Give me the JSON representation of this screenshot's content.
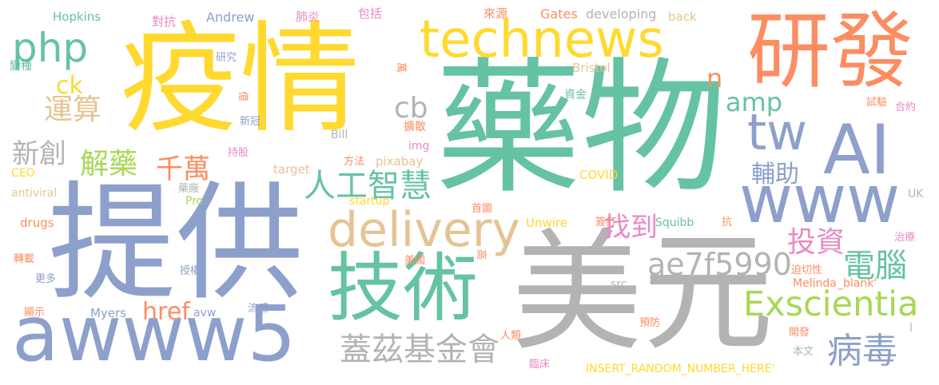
{
  "palette": {
    "green": "#66c2a5",
    "orange": "#fc8d62",
    "blue": "#8da0cb",
    "pink": "#e78ac3",
    "lime": "#a6d854",
    "yellow": "#ffd92f",
    "tan": "#e5c494",
    "gray": "#b3b3b3"
  },
  "words": [
    {
      "id": "w-yiqing",
      "text": "疫情",
      "color": "#ffd92f"
    },
    {
      "id": "w-yaowu",
      "text": "藥物",
      "color": "#66c2a5"
    },
    {
      "id": "w-tigong",
      "text": "提供",
      "color": "#8da0cb"
    },
    {
      "id": "w-meiyuan",
      "text": "美元",
      "color": "#b3b3b3"
    },
    {
      "id": "w-aiwww5",
      "text": "awww5",
      "color": "#8da0cb"
    },
    {
      "id": "w-technews",
      "text": "technews",
      "color": "#ffd92f"
    },
    {
      "id": "w-yanfa",
      "text": "研發",
      "color": "#fc8d62"
    },
    {
      "id": "w-jishu",
      "text": "技術",
      "color": "#66c2a5"
    },
    {
      "id": "w-ai",
      "text": "AI",
      "color": "#8da0cb"
    },
    {
      "id": "w-www",
      "text": "www",
      "color": "#8da0cb"
    },
    {
      "id": "w-tw",
      "text": "tw",
      "color": "#8da0cb"
    },
    {
      "id": "w-delivery",
      "text": "delivery",
      "color": "#e5c494"
    },
    {
      "id": "w-php",
      "text": "php",
      "color": "#66c2a5"
    },
    {
      "id": "w-exscientia",
      "text": "Exscientia",
      "color": "#a6d854"
    },
    {
      "id": "w-ae7f",
      "text": "ae7f5990",
      "color": "#b3b3b3"
    },
    {
      "id": "w-rengong",
      "text": "人工智慧",
      "color": "#66c2a5"
    },
    {
      "id": "w-gaizi",
      "text": "蓋茲基金會",
      "color": "#b3b3b3"
    },
    {
      "id": "w-bingdu",
      "text": "病毒",
      "color": "#8da0cb"
    },
    {
      "id": "w-touzi",
      "text": "投資",
      "color": "#e78ac3"
    },
    {
      "id": "w-diannao",
      "text": "電腦",
      "color": "#66c2a5"
    },
    {
      "id": "w-jieyao",
      "text": "解藥",
      "color": "#a6d854"
    },
    {
      "id": "w-qianwan",
      "text": "千萬",
      "color": "#fc8d62"
    },
    {
      "id": "w-zhaodao",
      "text": "找到",
      "color": "#e78ac3"
    },
    {
      "id": "w-fuzhu",
      "text": "輔助",
      "color": "#8da0cb"
    },
    {
      "id": "w-xinchuang",
      "text": "新創",
      "color": "#b3b3b3"
    },
    {
      "id": "w-yunsuan",
      "text": "運算",
      "color": "#e5c494"
    },
    {
      "id": "w-amp",
      "text": "amp",
      "color": "#66c2a5"
    },
    {
      "id": "w-cb",
      "text": "cb",
      "color": "#b3b3b3"
    },
    {
      "id": "w-href",
      "text": "href",
      "color": "#fc8d62"
    },
    {
      "id": "w-ck",
      "text": "ck",
      "color": "#ffd92f"
    },
    {
      "id": "w-n",
      "text": "n",
      "color": "#fc8d62"
    },
    {
      "id": "w-hopkins",
      "text": "Hopkins",
      "color": "#66c2a5"
    },
    {
      "id": "w-duikang",
      "text": "對抗",
      "color": "#e78ac3"
    },
    {
      "id": "w-andrew",
      "text": "Andrew",
      "color": "#8da0cb"
    },
    {
      "id": "w-feiyan",
      "text": "肺炎",
      "color": "#e78ac3"
    },
    {
      "id": "w-baokuo",
      "text": "包括",
      "color": "#e78ac3"
    },
    {
      "id": "w-laiyuan",
      "text": "來源",
      "color": "#fc8d62"
    },
    {
      "id": "w-gates",
      "text": "Gates",
      "color": "#fc8d62"
    },
    {
      "id": "w-developing",
      "text": "developing",
      "color": "#b3b3b3"
    },
    {
      "id": "w-back",
      "text": "back",
      "color": "#e5c494"
    },
    {
      "id": "w-bianzhong",
      "text": "變種",
      "color": "#66c2a5"
    },
    {
      "id": "w-yanjiu",
      "text": "研究",
      "color": "#8da0cb"
    },
    {
      "id": "w-wan",
      "text": "萬",
      "color": "#fc8d62"
    },
    {
      "id": "w-bristol",
      "text": "Bristol",
      "color": "#e5c494"
    },
    {
      "id": "w-yi",
      "text": "億",
      "color": "#fc8d62"
    },
    {
      "id": "w-zijin",
      "text": "資金",
      "color": "#66c2a5"
    },
    {
      "id": "w-shiyan",
      "text": "試驗",
      "color": "#fc8d62"
    },
    {
      "id": "w-heyue",
      "text": "合約",
      "color": "#e78ac3"
    },
    {
      "id": "w-xinguan",
      "text": "新冠",
      "color": "#8da0cb"
    },
    {
      "id": "w-bill",
      "text": "Bill",
      "color": "#b3b3b3"
    },
    {
      "id": "w-kuosan",
      "text": "擴散",
      "color": "#fc8d62"
    },
    {
      "id": "w-img",
      "text": "img",
      "color": "#e78ac3"
    },
    {
      "id": "w-chigu",
      "text": "持股",
      "color": "#e78ac3"
    },
    {
      "id": "w-ceo",
      "text": "CEO",
      "color": "#ffd92f"
    },
    {
      "id": "w-target",
      "text": "target",
      "color": "#e5c494"
    },
    {
      "id": "w-fangfa",
      "text": "方法",
      "color": "#fc8d62"
    },
    {
      "id": "w-pixabay",
      "text": "pixabay",
      "color": "#e5c494"
    },
    {
      "id": "w-covid",
      "text": "COVID",
      "color": "#ffd92f"
    },
    {
      "id": "w-antiviral",
      "text": "antiviral",
      "color": "#e5c494"
    },
    {
      "id": "w-yaochang",
      "text": "藥廠",
      "color": "#b3b3b3"
    },
    {
      "id": "w-startup",
      "text": "startup",
      "color": "#ffd92f"
    },
    {
      "id": "w-uk",
      "text": "UK",
      "color": "#b3b3b3"
    },
    {
      "id": "w-pro",
      "text": "Pro",
      "color": "#a6d854"
    },
    {
      "id": "w-drugs",
      "text": "drugs",
      "color": "#fc8d62"
    },
    {
      "id": "w-shoutu",
      "text": "首圖",
      "color": "#fc8d62"
    },
    {
      "id": "w-unwire",
      "text": "Unwire",
      "color": "#ffd92f"
    },
    {
      "id": "w-qianding",
      "text": "簽訂",
      "color": "#fc8d62"
    },
    {
      "id": "w-squibb",
      "text": "Squibb",
      "color": "#66c2a5"
    },
    {
      "id": "w-kang",
      "text": "抗",
      "color": "#fc8d62"
    },
    {
      "id": "w-zhiliao",
      "text": "治療",
      "color": "#e78ac3"
    },
    {
      "id": "w-zhuanzai",
      "text": "轉載",
      "color": "#fc8d62"
    },
    {
      "id": "w-shouquan",
      "text": "授權",
      "color": "#8da0cb"
    },
    {
      "id": "w-meiguo",
      "text": "美國",
      "color": "#fc8d62"
    },
    {
      "id": "w-gao",
      "text": "高",
      "color": "#fc8d62"
    },
    {
      "id": "w-poqiexing",
      "text": "迫切性",
      "color": "#fc8d62"
    },
    {
      "id": "w-gengduo",
      "text": "更多",
      "color": "#8da0cb"
    },
    {
      "id": "w-src",
      "text": "src",
      "color": "#b3b3b3"
    },
    {
      "id": "w-melinda",
      "text": "Melinda",
      "color": "#fc8d62"
    },
    {
      "id": "w-blank",
      "text": "_blank'",
      "color": "#fc8d62"
    },
    {
      "id": "w-xianshi",
      "text": "顯示",
      "color": "#fc8d62"
    },
    {
      "id": "w-myers",
      "text": "Myers",
      "color": "#8da0cb"
    },
    {
      "id": "w-avw",
      "text": "avw",
      "color": "#8da0cb"
    },
    {
      "id": "w-liugan",
      "text": "流感",
      "color": "#8da0cb"
    },
    {
      "id": "w-yufang",
      "text": "預防",
      "color": "#fc8d62"
    },
    {
      "id": "w-renlei",
      "text": "人類",
      "color": "#fc8d62"
    },
    {
      "id": "w-kaifa",
      "text": "開發",
      "color": "#fc8d62"
    },
    {
      "id": "w-benwen",
      "text": "本文",
      "color": "#b3b3b3"
    },
    {
      "id": "w-linchuang",
      "text": "臨床",
      "color": "#e78ac3"
    },
    {
      "id": "w-insert",
      "text": "INSERT_RANDOM_NUMBER_HERE'",
      "color": "#ffd92f"
    },
    {
      "id": "w-l",
      "text": "l",
      "color": "#b3b3b3"
    }
  ]
}
